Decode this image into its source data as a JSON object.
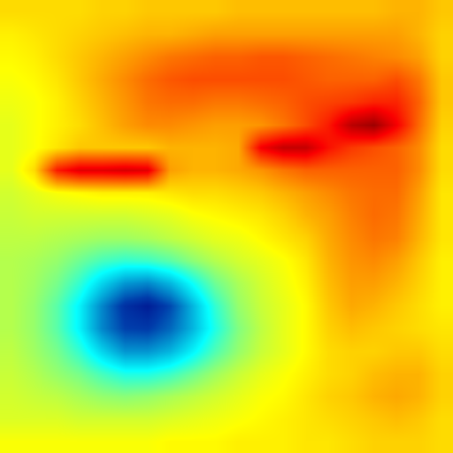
{
  "chart_data": {
    "type": "heatmap",
    "zlim": [
      0,
      100
    ],
    "tick_labels": false,
    "cells": [
      [
        66,
        66,
        66,
        66,
        67,
        67,
        68,
        68,
        68,
        68,
        69,
        69,
        69,
        69,
        69,
        69,
        69,
        70,
        70,
        68
      ],
      [
        64,
        65,
        66,
        67,
        68,
        69,
        70,
        70,
        71,
        72,
        72,
        72,
        72,
        72,
        72,
        72,
        72,
        72,
        70,
        67
      ],
      [
        63,
        64,
        66,
        68,
        70,
        72,
        74,
        76,
        77,
        78,
        78,
        79,
        79,
        78,
        77,
        76,
        75,
        74,
        72,
        67
      ],
      [
        62,
        63,
        65,
        68,
        71,
        74,
        77,
        79,
        80,
        80,
        80,
        80,
        80,
        79,
        78,
        78,
        78,
        80,
        76,
        68
      ],
      [
        61,
        62,
        64,
        67,
        70,
        73,
        76,
        77,
        77,
        76,
        76,
        77,
        78,
        80,
        81,
        82,
        84,
        84,
        78,
        68
      ],
      [
        60,
        62,
        64,
        66,
        69,
        72,
        74,
        74,
        73,
        72,
        72,
        73,
        76,
        80,
        85,
        94,
        97,
        88,
        77,
        67
      ],
      [
        60,
        62,
        65,
        68,
        68,
        68,
        68,
        70,
        70,
        70,
        71,
        88,
        93,
        93,
        86,
        82,
        80,
        78,
        74,
        66
      ],
      [
        60,
        66,
        85,
        90,
        90,
        91,
        90,
        72,
        70,
        70,
        71,
        73,
        76,
        78,
        78,
        78,
        78,
        78,
        74,
        66
      ],
      [
        58,
        60,
        62,
        63,
        64,
        64,
        64,
        65,
        66,
        66,
        67,
        68,
        70,
        72,
        74,
        76,
        77,
        77,
        72,
        65
      ],
      [
        57,
        58,
        58,
        58,
        58,
        58,
        59,
        60,
        62,
        63,
        64,
        65,
        67,
        70,
        72,
        75,
        77,
        76,
        71,
        65
      ],
      [
        56,
        56,
        55,
        54,
        53,
        53,
        54,
        56,
        58,
        60,
        61,
        63,
        65,
        67,
        71,
        74,
        76,
        75,
        70,
        65
      ],
      [
        55,
        54,
        52,
        48,
        44,
        42,
        43,
        46,
        51,
        55,
        58,
        60,
        62,
        65,
        70,
        73,
        74,
        72,
        68,
        64
      ],
      [
        55,
        53,
        49,
        42,
        32,
        24,
        22,
        28,
        38,
        48,
        54,
        58,
        61,
        64,
        69,
        72,
        72,
        70,
        67,
        64
      ],
      [
        55,
        52,
        46,
        36,
        22,
        10,
        6,
        14,
        28,
        42,
        52,
        57,
        60,
        63,
        68,
        71,
        70,
        68,
        66,
        64
      ],
      [
        55,
        52,
        46,
        36,
        22,
        13,
        12,
        18,
        28,
        40,
        50,
        56,
        60,
        63,
        67,
        69,
        68,
        67,
        66,
        65
      ],
      [
        56,
        53,
        49,
        42,
        32,
        24,
        24,
        28,
        36,
        45,
        52,
        57,
        60,
        63,
        66,
        67,
        67,
        68,
        68,
        66
      ],
      [
        57,
        55,
        52,
        49,
        44,
        40,
        40,
        43,
        48,
        53,
        57,
        60,
        62,
        64,
        66,
        67,
        69,
        70,
        70,
        67
      ],
      [
        58,
        57,
        56,
        54,
        52,
        51,
        52,
        54,
        56,
        58,
        60,
        62,
        63,
        65,
        67,
        68,
        70,
        71,
        70,
        67
      ],
      [
        59,
        59,
        59,
        58,
        58,
        58,
        58,
        59,
        60,
        61,
        62,
        63,
        64,
        65,
        66,
        67,
        68,
        69,
        68,
        66
      ],
      [
        62,
        62,
        62,
        62,
        62,
        62,
        62,
        63,
        63,
        63,
        64,
        64,
        64,
        65,
        65,
        66,
        67,
        67,
        67,
        66
      ]
    ]
  }
}
